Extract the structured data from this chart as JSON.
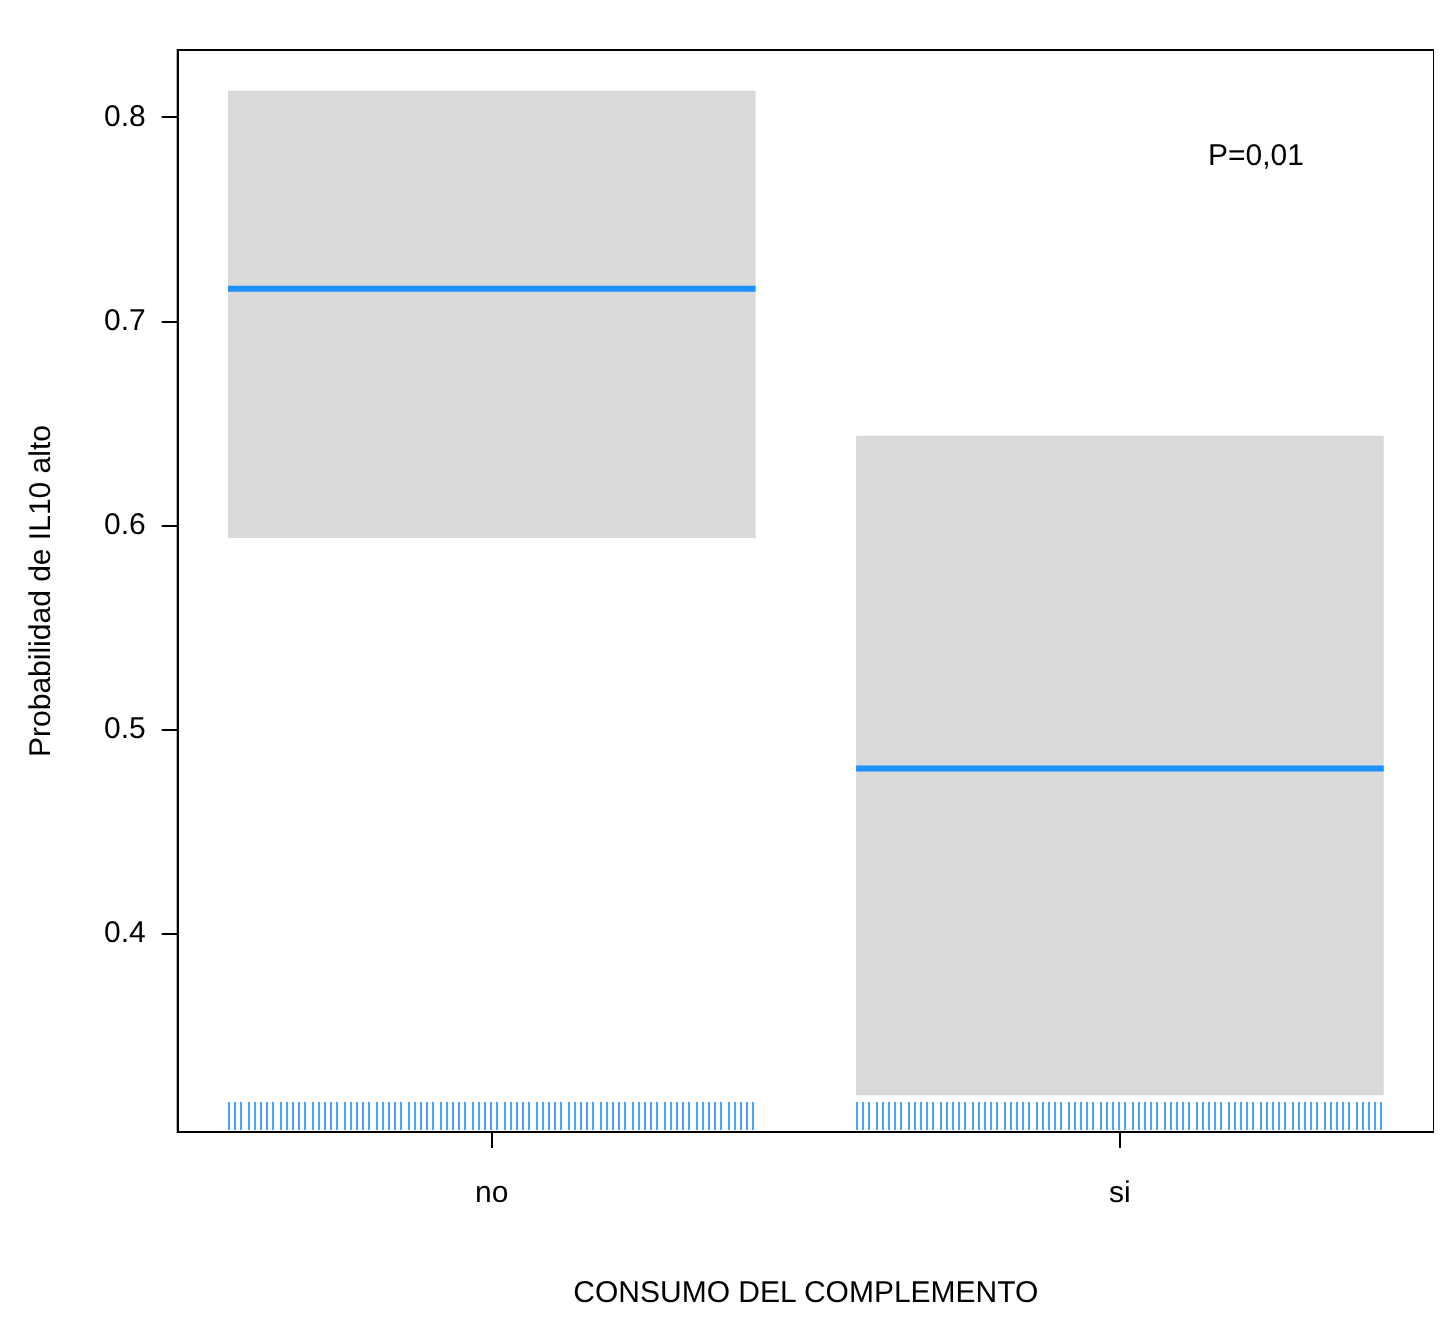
{
  "chart_data": {
    "type": "box",
    "xlabel": "CONSUMO DEL COMPLEMENTO",
    "ylabel": "Probabilidad de IL10 alto",
    "categories": [
      "no",
      "si"
    ],
    "series": [
      {
        "color": "#1e90ff",
        "colors": [
          "#d9d9d9",
          "#d9d9d9"
        ],
        "boxes": [
          {
            "low": 0.594,
            "q1": 0.594,
            "median": 0.716,
            "q3": 0.813,
            "high": 0.813
          },
          {
            "low": 0.321,
            "q1": 0.321,
            "median": 0.481,
            "q3": 0.644,
            "high": 0.644
          }
        ]
      }
    ],
    "ylim": [
      0.303,
      0.833
    ],
    "yticks": [
      0.4,
      0.5,
      0.6,
      0.7,
      0.8
    ],
    "grid": false,
    "legend": false,
    "annotations": [
      "P=0,01"
    ]
  }
}
